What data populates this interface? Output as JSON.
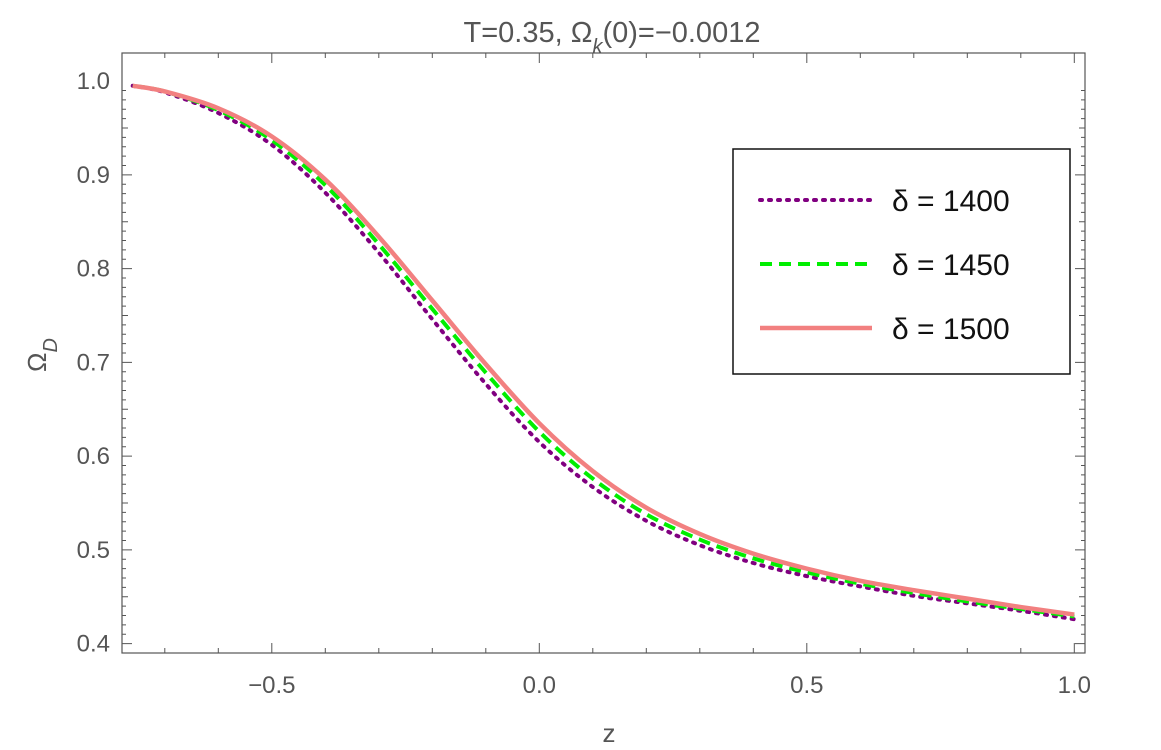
{
  "chart_data": {
    "type": "line",
    "title": {
      "prefix": "T=0.35, ",
      "omega": "Ω",
      "subscript": "k",
      "suffix": "(0)=−0.0012"
    },
    "xlabel": "z",
    "ylabel": {
      "base": "Ω",
      "subscript": "D"
    },
    "xlim": [
      -0.78,
      1.02
    ],
    "ylim": [
      0.39,
      1.03
    ],
    "x_ticks": [
      {
        "value": -0.5,
        "label": "−0.5"
      },
      {
        "value": 0.0,
        "label": "0.0"
      },
      {
        "value": 0.5,
        "label": "0.5"
      },
      {
        "value": 1.0,
        "label": "1.0"
      }
    ],
    "y_ticks": [
      {
        "value": 0.4,
        "label": "0.4"
      },
      {
        "value": 0.5,
        "label": "0.5"
      },
      {
        "value": 0.6,
        "label": "0.6"
      },
      {
        "value": 0.7,
        "label": "0.7"
      },
      {
        "value": 0.8,
        "label": "0.8"
      },
      {
        "value": 0.9,
        "label": "0.9"
      },
      {
        "value": 1.0,
        "label": "1.0"
      }
    ],
    "grid": false,
    "legend_position": "top-right",
    "series": [
      {
        "name": "δ = 1400",
        "color": "#800080",
        "style": "dotted",
        "x": [
          -0.76,
          -0.7,
          -0.6,
          -0.5,
          -0.4,
          -0.3,
          -0.2,
          -0.1,
          0.0,
          0.1,
          0.2,
          0.3,
          0.4,
          0.5,
          0.6,
          0.7,
          0.8,
          0.9,
          1.0
        ],
        "y": [
          0.995,
          0.988,
          0.966,
          0.932,
          0.881,
          0.817,
          0.746,
          0.677,
          0.615,
          0.567,
          0.531,
          0.505,
          0.486,
          0.472,
          0.461,
          0.451,
          0.443,
          0.435,
          0.426
        ]
      },
      {
        "name": "δ = 1450",
        "color": "#00ee00",
        "style": "dashed",
        "x": [
          -0.76,
          -0.7,
          -0.6,
          -0.5,
          -0.4,
          -0.3,
          -0.2,
          -0.1,
          0.0,
          0.1,
          0.2,
          0.3,
          0.4,
          0.5,
          0.6,
          0.7,
          0.8,
          0.9,
          1.0
        ],
        "y": [
          0.995,
          0.989,
          0.969,
          0.937,
          0.889,
          0.826,
          0.757,
          0.689,
          0.626,
          0.576,
          0.538,
          0.511,
          0.491,
          0.476,
          0.464,
          0.454,
          0.445,
          0.437,
          0.429
        ]
      },
      {
        "name": "δ = 1500",
        "color": "#f28080",
        "style": "solid",
        "x": [
          -0.76,
          -0.7,
          -0.6,
          -0.5,
          -0.4,
          -0.3,
          -0.2,
          -0.1,
          0.0,
          0.1,
          0.2,
          0.3,
          0.4,
          0.5,
          0.6,
          0.7,
          0.8,
          0.9,
          1.0
        ],
        "y": [
          0.995,
          0.989,
          0.971,
          0.941,
          0.895,
          0.834,
          0.766,
          0.698,
          0.635,
          0.584,
          0.545,
          0.517,
          0.496,
          0.48,
          0.467,
          0.457,
          0.448,
          0.439,
          0.431
        ]
      }
    ]
  }
}
